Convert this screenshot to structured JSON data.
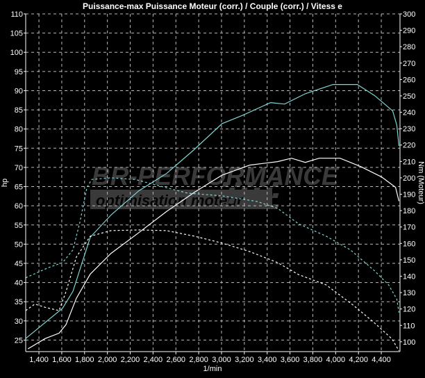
{
  "chart_data": {
    "type": "line",
    "title": "Puissance-max Puissance Moteur (corr.) / Couple (corr.) / Vitess e",
    "xlabel": "1/min",
    "ylabel_left": "hp",
    "ylabel_right": "Nm (Moteur)",
    "xlim": [
      1284,
      4564
    ],
    "ylim_left": [
      22,
      110
    ],
    "ylim_right": [
      94,
      300
    ],
    "x_ticks": [
      1400,
      1600,
      1800,
      2000,
      2200,
      2400,
      2600,
      2800,
      3000,
      3200,
      3400,
      3600,
      3800,
      4000,
      4200,
      4400
    ],
    "x_tick_labels": [
      "1,400",
      "1,600",
      "1,800",
      "2,000",
      "2,200",
      "2,400",
      "2,600",
      "2,800",
      "3,000",
      "3,200",
      "3,400",
      "3,600",
      "3,800",
      "4,000",
      "4,200",
      "4,400"
    ],
    "y_left_ticks": [
      25,
      30,
      35,
      40,
      45,
      50,
      55,
      60,
      65,
      70,
      75,
      80,
      85,
      90,
      95,
      100,
      105,
      110
    ],
    "y_right_ticks": [
      100,
      110,
      120,
      130,
      140,
      150,
      160,
      170,
      180,
      190,
      200,
      210,
      220,
      230,
      240,
      250,
      260,
      270,
      280,
      290,
      300
    ],
    "grid": true,
    "background": "#000000",
    "series": [
      {
        "axis": "left",
        "color": "#7fd6d6",
        "dash": false,
        "x": [
          1284,
          1607,
          1698,
          1850,
          2032,
          2275,
          2518,
          2762,
          3005,
          3187,
          3430,
          3552,
          3734,
          3977,
          4190,
          4342,
          4500,
          4536,
          4555
        ],
        "y": [
          25.4,
          33.3,
          37.7,
          51.8,
          57.6,
          63.9,
          68.4,
          74.7,
          81.4,
          83.6,
          86.9,
          86.5,
          89.2,
          91.6,
          91.6,
          88.7,
          84.7,
          81,
          75.6
        ]
      },
      {
        "axis": "left",
        "color": "#ffffff",
        "dash": false,
        "x": [
          1303,
          1455,
          1576,
          1637,
          1728,
          1850,
          2032,
          2275,
          2518,
          2762,
          3005,
          3248,
          3491,
          3613,
          3734,
          3856,
          4038,
          4221,
          4403,
          4525,
          4555
        ],
        "y": [
          22.7,
          25.4,
          26.8,
          29,
          35.9,
          42.2,
          47.6,
          53,
          58.5,
          63.5,
          68,
          70.6,
          71.5,
          72.4,
          71.3,
          72.4,
          72.4,
          70.2,
          67.5,
          64.8,
          61.2
        ]
      },
      {
        "axis": "right",
        "color": "#7fd6d6",
        "dash": true,
        "x": [
          1284,
          1485,
          1607,
          1698,
          1759,
          1820,
          1862,
          2032,
          2245,
          2458,
          2701,
          3005,
          3309,
          3491,
          3674,
          3917,
          4130,
          4342,
          4464,
          4536,
          4555
        ],
        "y": [
          139,
          145.3,
          148.3,
          156,
          173,
          194,
          199,
          200,
          199,
          195,
          190.7,
          189,
          185.6,
          181.4,
          172,
          164.4,
          156,
          143.2,
          134.7,
          126,
          117.8
        ]
      },
      {
        "axis": "right",
        "color": "#ffffff",
        "dash": true,
        "x": [
          1284,
          1364,
          1455,
          1576,
          1637,
          1728,
          1850,
          2032,
          2275,
          2518,
          2762,
          3005,
          3248,
          3491,
          3674,
          3917,
          4160,
          4342,
          4494,
          4555
        ],
        "y": [
          119,
          123,
          121,
          119,
          130.5,
          151.7,
          164.4,
          167.8,
          168.2,
          167.8,
          164.4,
          160.2,
          155,
          148.3,
          141,
          134.7,
          122,
          111.4,
          101.7,
          94.5
        ]
      }
    ]
  },
  "watermark": {
    "brand": "BR-PERFORMANCE",
    "tagline": "optimisation moteur"
  }
}
